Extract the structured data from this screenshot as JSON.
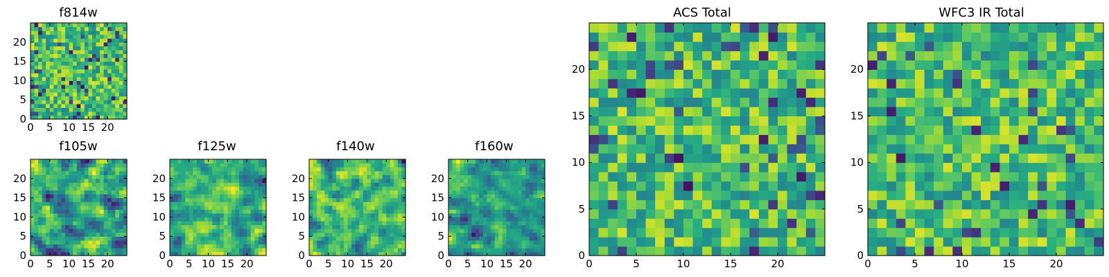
{
  "chart_data": [
    {
      "type": "heatmap",
      "title": "f814w",
      "grid_size": 25,
      "xlim": [
        0,
        25
      ],
      "ylim": [
        0,
        25
      ],
      "x_ticks": [
        0,
        5,
        10,
        15,
        20
      ],
      "y_ticks": [
        0,
        5,
        10,
        15,
        20
      ],
      "colormap": "viridis",
      "seed": 11,
      "smoothing": 0
    },
    {
      "type": "heatmap",
      "title": "f105w",
      "grid_size": 25,
      "xlim": [
        0,
        25
      ],
      "ylim": [
        0,
        25
      ],
      "x_ticks": [
        0,
        5,
        10,
        15,
        20
      ],
      "y_ticks": [
        0,
        5,
        10,
        15,
        20
      ],
      "colormap": "viridis",
      "seed": 23,
      "smoothing": 1
    },
    {
      "type": "heatmap",
      "title": "f125w",
      "grid_size": 25,
      "xlim": [
        0,
        25
      ],
      "ylim": [
        0,
        25
      ],
      "x_ticks": [
        0,
        5,
        10,
        15,
        20
      ],
      "y_ticks": [
        0,
        5,
        10,
        15,
        20
      ],
      "colormap": "viridis",
      "seed": 37,
      "smoothing": 1
    },
    {
      "type": "heatmap",
      "title": "f140w",
      "grid_size": 25,
      "xlim": [
        0,
        25
      ],
      "ylim": [
        0,
        25
      ],
      "x_ticks": [
        0,
        5,
        10,
        15,
        20
      ],
      "y_ticks": [
        0,
        5,
        10,
        15,
        20
      ],
      "colormap": "viridis",
      "seed": 41,
      "smoothing": 1
    },
    {
      "type": "heatmap",
      "title": "f160w",
      "grid_size": 25,
      "xlim": [
        0,
        25
      ],
      "ylim": [
        0,
        25
      ],
      "x_ticks": [
        0,
        5,
        10,
        15,
        20
      ],
      "y_ticks": [
        0,
        5,
        10,
        15,
        20
      ],
      "colormap": "viridis",
      "seed": 53,
      "smoothing": 1
    },
    {
      "type": "heatmap",
      "title": "ACS Total",
      "grid_size": 25,
      "xlim": [
        0,
        25
      ],
      "ylim": [
        0,
        25
      ],
      "x_ticks": [
        0,
        5,
        10,
        15,
        20
      ],
      "y_ticks": [
        0,
        5,
        10,
        15,
        20
      ],
      "colormap": "viridis",
      "seed": 67,
      "smoothing": 0
    },
    {
      "type": "heatmap",
      "title": "WFC3 IR Total",
      "grid_size": 25,
      "xlim": [
        0,
        25
      ],
      "ylim": [
        0,
        25
      ],
      "x_ticks": [
        0,
        5,
        10,
        15,
        20
      ],
      "y_ticks": [
        0,
        5,
        10,
        15,
        20
      ],
      "colormap": "viridis",
      "seed": 79,
      "smoothing": 0
    }
  ]
}
